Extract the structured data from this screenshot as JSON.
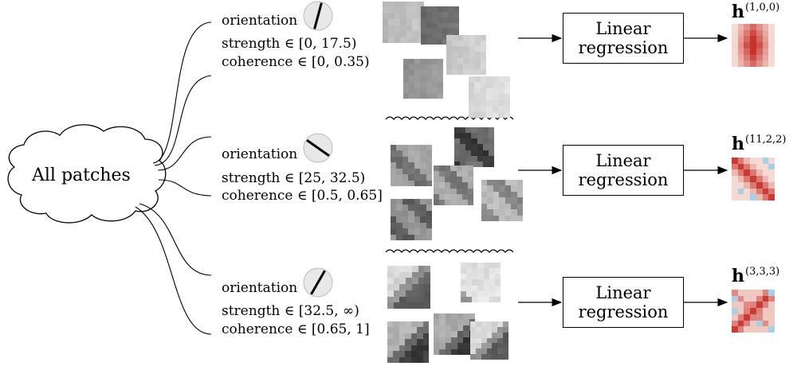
{
  "cloud_label": "All patches",
  "rows": [
    {
      "orientation_label": "orientation",
      "strength_label": "strength ∈ [0, 17.5)",
      "coherence_label": "coherence ∈ [0, 0.35)",
      "box_line1": "Linear",
      "box_line2": "regression",
      "h_symbol": "h",
      "h_index": "(1,0,0)",
      "orientation_angle_deg": 75
    },
    {
      "orientation_label": "orientation",
      "strength_label": "strength ∈ [25, 32.5)",
      "coherence_label": "coherence ∈ [0.5, 0.65]",
      "box_line1": "Linear",
      "box_line2": "regression",
      "h_symbol": "h",
      "h_index": "(11,2,2)",
      "orientation_angle_deg": -35
    },
    {
      "orientation_label": "orientation",
      "strength_label": "strength ∈ [32.5, ∞)",
      "coherence_label": "coherence ∈ [0.65, 1]",
      "box_line1": "Linear",
      "box_line2": "regression",
      "h_symbol": "h",
      "h_index": "(3,3,3)",
      "orientation_angle_deg": 60
    }
  ],
  "colors": {
    "filter_red": "#c8322d",
    "filter_light": "#f7e3dc",
    "filter_blue": "#a8d0e6"
  }
}
